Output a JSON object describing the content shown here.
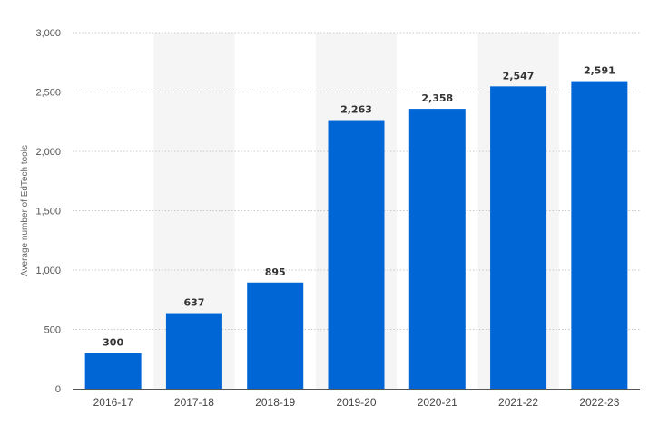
{
  "chart_data": {
    "type": "bar",
    "title": "",
    "xlabel": "",
    "ylabel": "Average number of EdTech tools",
    "categories": [
      "2016-17",
      "2017-18",
      "2018-19",
      "2019-20",
      "2020-21",
      "2021-22",
      "2022-23"
    ],
    "values": [
      300,
      637,
      895,
      2263,
      2358,
      2547,
      2591
    ],
    "value_labels": [
      "300",
      "637",
      "895",
      "2,263",
      "2,358",
      "2,547",
      "2,591"
    ],
    "ylim": [
      0,
      3000
    ],
    "yticks": [
      0,
      500,
      1000,
      1500,
      2000,
      2500,
      3000
    ],
    "ytick_labels": [
      "0",
      "500",
      "1,000",
      "1,500",
      "2,000",
      "2,500",
      "3,000"
    ],
    "grid": true,
    "alternating_column_shading": true,
    "colors": {
      "bar": "#0066d6",
      "shade": "#f5f5f5",
      "grid": "#c8c8c8"
    }
  }
}
